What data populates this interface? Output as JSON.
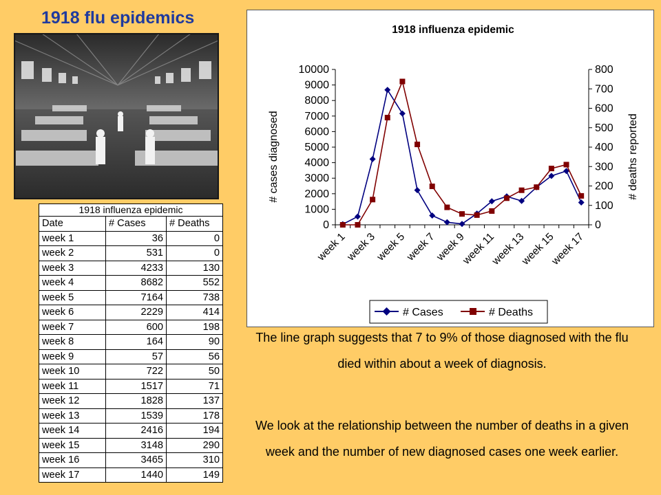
{
  "slide_title": "1918 flu epidemics",
  "table": {
    "title": "1918 influenza epidemic",
    "headers": [
      "Date",
      "# Cases",
      "# Deaths"
    ],
    "rows": [
      [
        "week 1",
        "36",
        "0"
      ],
      [
        "week 2",
        "531",
        "0"
      ],
      [
        "week 3",
        "4233",
        "130"
      ],
      [
        "week 4",
        "8682",
        "552"
      ],
      [
        "week 5",
        "7164",
        "738"
      ],
      [
        "week 6",
        "2229",
        "414"
      ],
      [
        "week 7",
        "600",
        "198"
      ],
      [
        "week 8",
        "164",
        "90"
      ],
      [
        "week 9",
        "57",
        "56"
      ],
      [
        "week 10",
        "722",
        "50"
      ],
      [
        "week 11",
        "1517",
        "71"
      ],
      [
        "week 12",
        "1828",
        "137"
      ],
      [
        "week 13",
        "1539",
        "178"
      ],
      [
        "week 14",
        "2416",
        "194"
      ],
      [
        "week 15",
        "3148",
        "290"
      ],
      [
        "week 16",
        "3465",
        "310"
      ],
      [
        "week 17",
        "1440",
        "149"
      ]
    ]
  },
  "captions": [
    "The line graph suggests that 7 to 9% of those diagnosed with the flu died within about a week of diagnosis.",
    "We look at the relationship between the number of deaths in a given week and the number of new diagnosed cases one week earlier."
  ],
  "colors": {
    "background": "#FFCC66",
    "title": "#1F3A9E",
    "cases_series": "#000080",
    "deaths_series": "#800000"
  },
  "chart_data": {
    "type": "line",
    "title": "1918 influenza epidemic",
    "categories": [
      "week 1",
      "week 2",
      "week 3",
      "week 4",
      "week 5",
      "week 6",
      "week 7",
      "week 8",
      "week 9",
      "week 10",
      "week 11",
      "week 12",
      "week 13",
      "week 14",
      "week 15",
      "week 16",
      "week 17"
    ],
    "tick_labels_shown": [
      "week 1",
      "week 3",
      "week 5",
      "week 7",
      "week 9",
      "week 11",
      "week 13",
      "week 15",
      "week 17"
    ],
    "ylabel": "# cases diagnosed",
    "y2label": "# deaths reported",
    "ylim": [
      0,
      10000
    ],
    "yticks": [
      0,
      1000,
      2000,
      3000,
      4000,
      5000,
      6000,
      7000,
      8000,
      9000,
      10000
    ],
    "y2lim": [
      0,
      800
    ],
    "y2ticks": [
      0,
      100,
      200,
      300,
      400,
      500,
      600,
      700,
      800
    ],
    "grid": false,
    "legend_position": "bottom",
    "series": [
      {
        "name": "# Cases",
        "axis": "left",
        "marker": "diamond",
        "values": [
          36,
          531,
          4233,
          8682,
          7164,
          2229,
          600,
          164,
          57,
          722,
          1517,
          1828,
          1539,
          2416,
          3148,
          3465,
          1440
        ]
      },
      {
        "name": "# Deaths",
        "axis": "right",
        "marker": "square",
        "values": [
          0,
          0,
          130,
          552,
          738,
          414,
          198,
          90,
          56,
          50,
          71,
          137,
          178,
          194,
          290,
          310,
          149
        ]
      }
    ]
  }
}
